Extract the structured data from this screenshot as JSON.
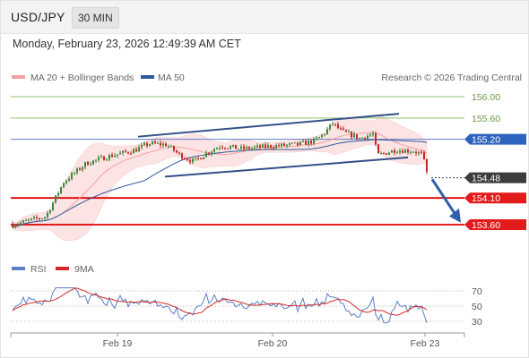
{
  "header": {
    "symbol": "USD/JPY",
    "interval": "30 MIN"
  },
  "datetime": "Monday, February 23, 2026 12:49:39 AM CET",
  "legend": {
    "ma20": "MA 20 + Bollinger Bands",
    "ma50": "MA 50",
    "credit": "Research © 2026 Trading Central"
  },
  "rsi_legend": {
    "rsi": "RSI",
    "ma9": "9MA"
  },
  "colors": {
    "up": "#3a8a3a",
    "down": "#c62828",
    "ma20": "#f5a0a0",
    "ma50": "#2f5a9e",
    "channel": "#34508a",
    "bb_fill": "#fde0e0",
    "support": "#e00000",
    "green_level": "#8dc26e",
    "pivot": "#5b7fc6",
    "rsi_line": "#5b7fc6",
    "rsi_ma": "#d22a2a",
    "arrow": "#2f5fa8"
  },
  "chart_data": [
    {
      "type": "candlestick",
      "title": "USD/JPY 30 MIN",
      "ylim": [
        153.5,
        156.1
      ],
      "x_labels": [
        "Feb 19",
        "Feb 20",
        "Feb 23"
      ],
      "levels": [
        {
          "value": 156.0,
          "label": "156.00",
          "kind": "resistance"
        },
        {
          "value": 155.6,
          "label": "155.60",
          "kind": "resistance"
        },
        {
          "value": 155.2,
          "label": "155.20",
          "kind": "pivot"
        },
        {
          "value": 154.48,
          "label": "154.48",
          "kind": "last"
        },
        {
          "value": 154.1,
          "label": "154.10",
          "kind": "support"
        },
        {
          "value": 153.6,
          "label": "153.60",
          "kind": "support"
        }
      ],
      "channel": {
        "upper": [
          [
            153.0,
            155.25
          ],
          [
            444.0,
            155.68
          ]
        ],
        "lower": [
          [
            183.0,
            154.5
          ],
          [
            454.0,
            154.86
          ]
        ]
      },
      "forecast_arrow": {
        "from": 154.45,
        "to": 153.62
      }
    },
    {
      "type": "line",
      "title": "RSI",
      "series": [
        {
          "name": "RSI"
        },
        {
          "name": "9MA"
        }
      ],
      "ylim": [
        25,
        80
      ],
      "levels": [
        70,
        50,
        30
      ]
    }
  ]
}
